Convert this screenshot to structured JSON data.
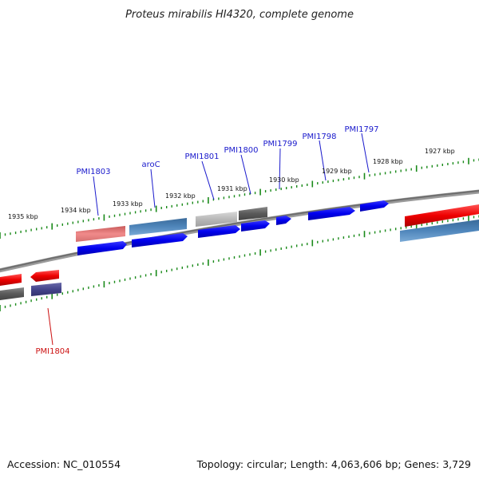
{
  "title": "Proteus mirabilis HI4320, complete genome",
  "footer": {
    "accession": "Accession: NC_010554",
    "summary": "Topology: circular; Length: 4,063,606 bp; Genes: 3,729"
  },
  "colors": {
    "backbone": "#777777",
    "tick": "#1a8a1a",
    "forward_label": "#1a1acc",
    "reverse_label": "#cc1111",
    "cds_forward": "#0000ee",
    "cds_reverse": "#ee0000"
  },
  "ticks": [
    {
      "label": "1935 kbp"
    },
    {
      "label": "1934 kbp"
    },
    {
      "label": "1933 kbp"
    },
    {
      "label": "1932 kbp"
    },
    {
      "label": "1931 kbp"
    },
    {
      "label": "1930 kbp"
    },
    {
      "label": "1929 kbp"
    },
    {
      "label": "1928 kbp"
    },
    {
      "label": "1927 kbp"
    }
  ],
  "gene_labels": [
    {
      "text": "PMI1803",
      "strand": "forward"
    },
    {
      "text": "aroC",
      "strand": "forward"
    },
    {
      "text": "PMI1801",
      "strand": "forward"
    },
    {
      "text": "PMI1800",
      "strand": "forward"
    },
    {
      "text": "PMI1799",
      "strand": "forward"
    },
    {
      "text": "PMI1798",
      "strand": "forward"
    },
    {
      "text": "PMI1797",
      "strand": "forward"
    },
    {
      "text": "PMI1804",
      "strand": "reverse"
    }
  ]
}
